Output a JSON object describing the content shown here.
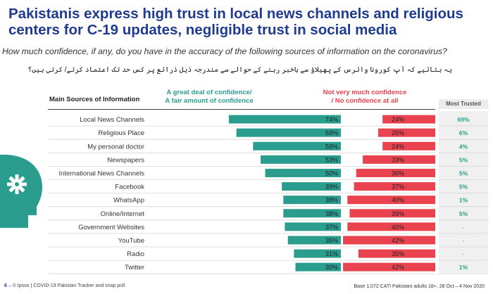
{
  "title": "Pakistanis express high trust in local news channels and religious centers for C-19 updates, negligible trust in social media",
  "title_line1": "Pakistanis express high trust in local news channels and religious",
  "title_line2": "centers for C-19 updates, negligible trust in social media",
  "question": "How much confidence, if any, do you have in the accuracy of the following sources of information on the coronavirus?",
  "question_urdu": "یہ بتائیے کہ آپ کورونا وائرس کے پھیلاؤ سے باخبر رہنے کے حوالے سے مندرجہ ذیل ذرائع پر کس حد تک اعتماد کرتے/ کرتی ہیں؟",
  "footer": {
    "page_number": "6",
    "source": "– © Ipsos | COVID-19 Pakistan Tracker and snap poll",
    "base": "Base 1,072 CATI Pakistani adults 18+, 28 Oct – 4 Nov 2020"
  },
  "colors": {
    "positive": "#2a9d8f",
    "negative": "#e8434f",
    "title": "#1f3b8f"
  },
  "icon": "person-head-gear-icon",
  "chart_data": {
    "type": "bar",
    "column_header": "Main Sources of Information",
    "positive_label": "A great deal of confidence/ A fair amount of confidence",
    "positive_label_line1": "A great deal of confidence/",
    "positive_label_line2": "A fair amount of confidence",
    "negative_label": "Not very much confidence / No confidence at all",
    "negative_label_line1": "Not very much confidence",
    "negative_label_line2": "/ No confidence at all",
    "most_trusted_label": "Most Trusted",
    "categories": [
      "Local News Channels",
      "Religious Place",
      "My personal doctor",
      "Newspapers",
      "International News Channels",
      "Facebook",
      "WhatsApp",
      "Online/Internet",
      "Government Websites",
      "YouTube",
      "Radio",
      "Twitter"
    ],
    "series": [
      {
        "name": "A great deal of confidence/ A fair amount of confidence",
        "values": [
          74,
          69,
          58,
          53,
          50,
          39,
          38,
          38,
          37,
          35,
          31,
          30
        ]
      },
      {
        "name": "Not very much confidence / No confidence at all",
        "values": [
          24,
          26,
          24,
          33,
          36,
          37,
          40,
          39,
          40,
          42,
          35,
          42
        ]
      }
    ],
    "value_labels": {
      "positive": [
        "74%",
        "69%",
        "58%",
        "53%",
        "50%",
        "39%",
        "38%",
        "38%",
        "37%",
        "35%",
        "31%",
        "30%"
      ],
      "negative": [
        "24%",
        "26%",
        "24%",
        "33%",
        "36%",
        "37%",
        "40%",
        "39%",
        "40%",
        "42%",
        "35%",
        "42%"
      ]
    },
    "most_trusted": [
      "69%",
      "6%",
      "4%",
      "5%",
      "5%",
      "5%",
      "1%",
      "5%",
      "-",
      "-",
      "-",
      "1%"
    ]
  }
}
